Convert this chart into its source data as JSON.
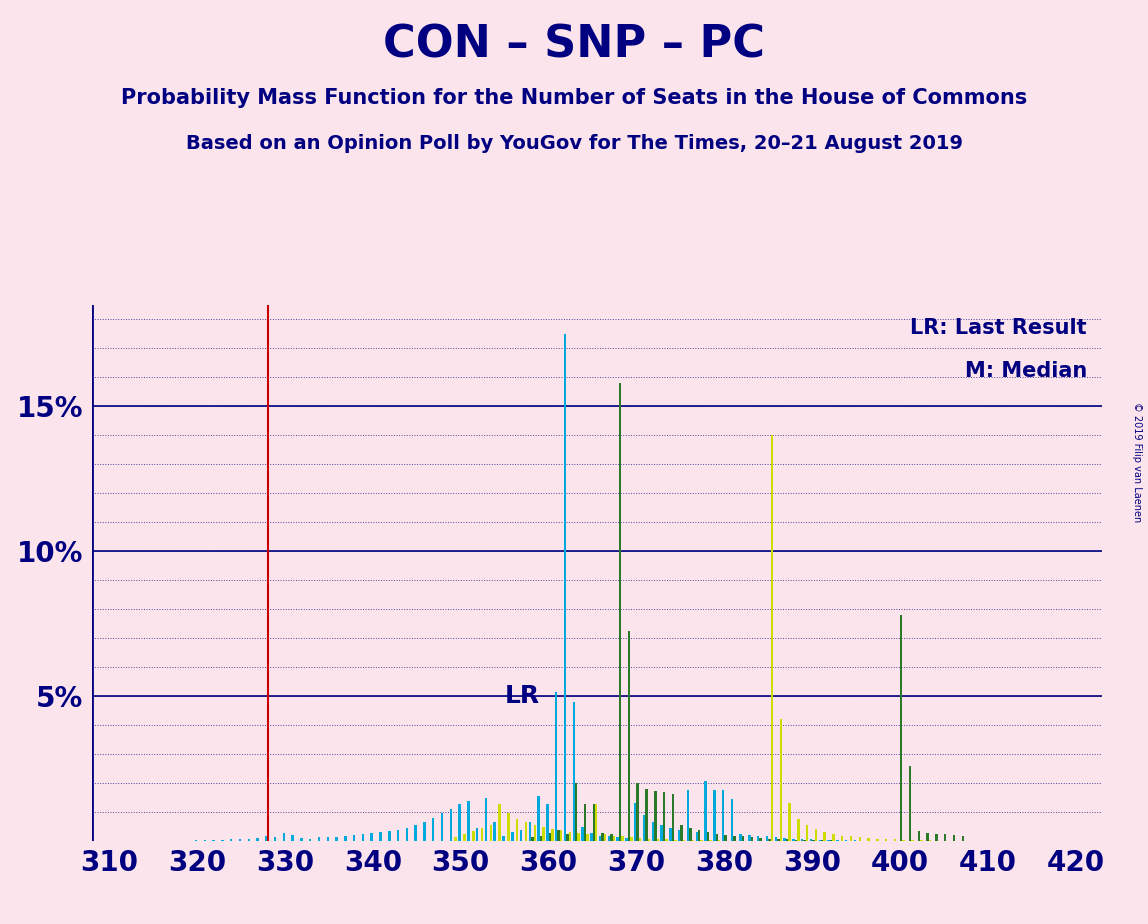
{
  "title": "CON – SNP – PC",
  "subtitle1": "Probability Mass Function for the Number of Seats in the House of Commons",
  "subtitle2": "Based on an Opinion Poll by YouGov for The Times, 20–21 August 2019",
  "copyright": "© 2019 Filip van Laenen",
  "bg_color": "#fce4ec",
  "title_color": "#000080",
  "grid_color": "#000080",
  "lr_line_color": "#cc0000",
  "lr_x": 328,
  "legend_lr": "LR: Last Result",
  "legend_m": "M: Median",
  "xmin": 308,
  "xmax": 423,
  "ymin": 0,
  "ymax": 18.5,
  "con_color": "#00aadd",
  "snp_color": "#2a7a2a",
  "pc_color": "#ccdd00",
  "con_bars": [
    [
      311,
      0.01
    ],
    [
      312,
      0.01
    ],
    [
      313,
      0.01
    ],
    [
      314,
      0.01
    ],
    [
      315,
      0.01
    ],
    [
      316,
      0.01
    ],
    [
      317,
      0.01
    ],
    [
      318,
      0.01
    ],
    [
      319,
      0.01
    ],
    [
      320,
      0.02
    ],
    [
      321,
      0.02
    ],
    [
      322,
      0.03
    ],
    [
      323,
      0.04
    ],
    [
      324,
      0.05
    ],
    [
      325,
      0.06
    ],
    [
      326,
      0.08
    ],
    [
      327,
      0.1
    ],
    [
      328,
      0.15
    ],
    [
      329,
      0.12
    ],
    [
      330,
      0.27
    ],
    [
      331,
      0.19
    ],
    [
      332,
      0.1
    ],
    [
      333,
      0.06
    ],
    [
      334,
      0.12
    ],
    [
      335,
      0.13
    ],
    [
      336,
      0.14
    ],
    [
      337,
      0.17
    ],
    [
      338,
      0.2
    ],
    [
      339,
      0.25
    ],
    [
      340,
      0.28
    ],
    [
      341,
      0.3
    ],
    [
      342,
      0.34
    ],
    [
      343,
      0.38
    ],
    [
      344,
      0.44
    ],
    [
      345,
      0.55
    ],
    [
      346,
      0.65
    ],
    [
      347,
      0.8
    ],
    [
      348,
      0.95
    ],
    [
      349,
      1.1
    ],
    [
      350,
      1.26
    ],
    [
      351,
      1.38
    ],
    [
      352,
      0.45
    ],
    [
      353,
      1.48
    ],
    [
      354,
      0.65
    ],
    [
      355,
      0.18
    ],
    [
      356,
      0.3
    ],
    [
      357,
      0.38
    ],
    [
      358,
      0.65
    ],
    [
      359,
      1.55
    ],
    [
      360,
      1.28
    ],
    [
      361,
      5.15
    ],
    [
      362,
      17.5
    ],
    [
      363,
      4.8
    ],
    [
      364,
      0.48
    ],
    [
      365,
      0.28
    ],
    [
      366,
      0.18
    ],
    [
      367,
      0.15
    ],
    [
      368,
      0.12
    ],
    [
      369,
      0.1
    ],
    [
      370,
      1.3
    ],
    [
      371,
      0.88
    ],
    [
      372,
      0.65
    ],
    [
      373,
      0.55
    ],
    [
      374,
      0.45
    ],
    [
      375,
      0.38
    ],
    [
      376,
      1.75
    ],
    [
      377,
      0.3
    ],
    [
      378,
      2.05
    ],
    [
      379,
      1.75
    ],
    [
      380,
      1.75
    ],
    [
      381,
      1.45
    ],
    [
      382,
      0.25
    ],
    [
      383,
      0.2
    ],
    [
      384,
      0.18
    ],
    [
      385,
      0.15
    ],
    [
      386,
      0.12
    ],
    [
      387,
      0.1
    ],
    [
      388,
      0.08
    ],
    [
      389,
      0.06
    ],
    [
      390,
      0.05
    ],
    [
      391,
      0.04
    ],
    [
      392,
      0.03
    ],
    [
      393,
      0.03
    ],
    [
      394,
      0.02
    ],
    [
      395,
      0.02
    ],
    [
      396,
      0.01
    ],
    [
      397,
      0.01
    ],
    [
      398,
      0.01
    ],
    [
      399,
      0.01
    ],
    [
      400,
      0.01
    ],
    [
      401,
      0.01
    ],
    [
      402,
      0.01
    ],
    [
      403,
      0.01
    ],
    [
      404,
      0.01
    ],
    [
      405,
      0.01
    ],
    [
      406,
      0.01
    ],
    [
      407,
      0.01
    ],
    [
      408,
      0.01
    ],
    [
      409,
      0.01
    ],
    [
      410,
      0.01
    ]
  ],
  "snp_bars": [
    [
      358,
      0.12
    ],
    [
      359,
      0.18
    ],
    [
      360,
      0.28
    ],
    [
      361,
      0.38
    ],
    [
      362,
      0.22
    ],
    [
      363,
      2.0
    ],
    [
      364,
      1.28
    ],
    [
      365,
      1.28
    ],
    [
      366,
      0.28
    ],
    [
      367,
      0.22
    ],
    [
      368,
      15.8
    ],
    [
      369,
      7.25
    ],
    [
      370,
      2.0
    ],
    [
      371,
      1.78
    ],
    [
      372,
      1.72
    ],
    [
      373,
      1.68
    ],
    [
      374,
      1.62
    ],
    [
      375,
      0.55
    ],
    [
      376,
      0.45
    ],
    [
      377,
      0.38
    ],
    [
      378,
      0.3
    ],
    [
      379,
      0.25
    ],
    [
      380,
      0.2
    ],
    [
      381,
      0.18
    ],
    [
      382,
      0.15
    ],
    [
      383,
      0.12
    ],
    [
      384,
      0.1
    ],
    [
      385,
      0.08
    ],
    [
      386,
      0.06
    ],
    [
      387,
      0.05
    ],
    [
      388,
      0.04
    ],
    [
      389,
      0.03
    ],
    [
      390,
      0.03
    ],
    [
      391,
      0.02
    ],
    [
      392,
      0.02
    ],
    [
      393,
      0.01
    ],
    [
      394,
      0.01
    ],
    [
      395,
      0.01
    ],
    [
      396,
      0.01
    ],
    [
      397,
      0.01
    ],
    [
      398,
      0.01
    ],
    [
      399,
      0.01
    ],
    [
      400,
      7.8
    ],
    [
      401,
      2.6
    ],
    [
      402,
      0.35
    ],
    [
      403,
      0.28
    ],
    [
      404,
      0.25
    ],
    [
      405,
      0.22
    ],
    [
      406,
      0.2
    ],
    [
      407,
      0.18
    ],
    [
      408,
      0.01
    ]
  ],
  "pc_bars": [
    [
      349,
      0.12
    ],
    [
      350,
      0.22
    ],
    [
      351,
      0.35
    ],
    [
      352,
      0.45
    ],
    [
      353,
      0.55
    ],
    [
      354,
      1.28
    ],
    [
      355,
      0.95
    ],
    [
      356,
      0.75
    ],
    [
      357,
      0.65
    ],
    [
      358,
      0.55
    ],
    [
      359,
      0.48
    ],
    [
      360,
      0.42
    ],
    [
      361,
      0.38
    ],
    [
      362,
      0.32
    ],
    [
      363,
      0.28
    ],
    [
      364,
      0.25
    ],
    [
      365,
      1.28
    ],
    [
      366,
      0.22
    ],
    [
      367,
      0.18
    ],
    [
      368,
      0.15
    ],
    [
      369,
      0.12
    ],
    [
      370,
      0.1
    ],
    [
      371,
      0.08
    ],
    [
      372,
      0.06
    ],
    [
      373,
      0.05
    ],
    [
      374,
      0.04
    ],
    [
      375,
      0.03
    ],
    [
      376,
      0.03
    ],
    [
      377,
      0.02
    ],
    [
      378,
      0.02
    ],
    [
      379,
      0.02
    ],
    [
      380,
      0.01
    ],
    [
      381,
      0.01
    ],
    [
      382,
      0.01
    ],
    [
      383,
      0.01
    ],
    [
      384,
      0.01
    ],
    [
      385,
      14.0
    ],
    [
      386,
      4.2
    ],
    [
      387,
      1.3
    ],
    [
      388,
      0.75
    ],
    [
      389,
      0.55
    ],
    [
      390,
      0.4
    ],
    [
      391,
      0.3
    ],
    [
      392,
      0.22
    ],
    [
      393,
      0.18
    ],
    [
      394,
      0.15
    ],
    [
      395,
      0.12
    ],
    [
      396,
      0.1
    ],
    [
      397,
      0.08
    ],
    [
      398,
      0.06
    ],
    [
      399,
      0.05
    ],
    [
      400,
      0.04
    ],
    [
      401,
      0.03
    ],
    [
      402,
      0.03
    ],
    [
      403,
      0.02
    ]
  ],
  "xticks": [
    310,
    320,
    330,
    340,
    350,
    360,
    370,
    380,
    390,
    400,
    410,
    420
  ],
  "yticks": [
    5,
    10,
    15
  ],
  "ytick_labels": [
    "5%",
    "10%",
    "15%"
  ]
}
